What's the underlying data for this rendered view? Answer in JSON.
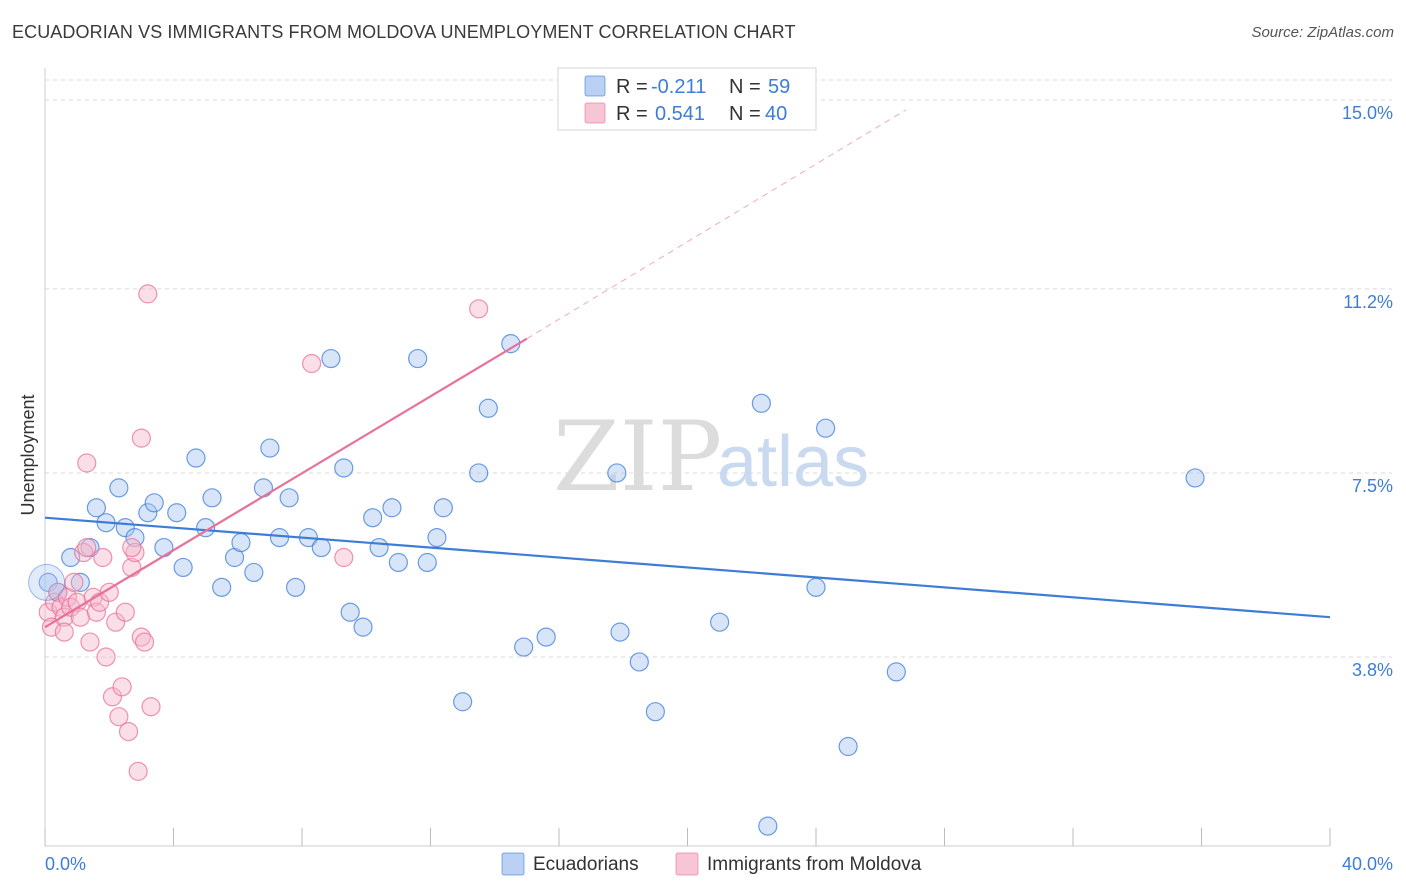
{
  "title": "ECUADORIAN VS IMMIGRANTS FROM MOLDOVA UNEMPLOYMENT CORRELATION CHART",
  "source": "Source: ZipAtlas.com",
  "watermark": {
    "zip": "ZIP",
    "atlas": "atlas"
  },
  "colors": {
    "blue": "#3d7dd8",
    "blue_fill": "#a9c6f0",
    "pink": "#e8709a",
    "pink_fill": "#f5b8cb",
    "grid": "#d9d9d9",
    "tick_text": "#3d7dd8"
  },
  "legend": {
    "r_label": "R =",
    "n_label": "N =",
    "rows": [
      {
        "series": "Ecuadorians",
        "r": "-0.211",
        "n": "59",
        "color": "blue"
      },
      {
        "series": "Immigrants from Moldova",
        "r": "0.541",
        "n": "40",
        "color": "pink"
      }
    ]
  },
  "bottom_legend": [
    "Ecuadorians",
    "Immigrants from Moldova"
  ],
  "chart_data": {
    "type": "scatter",
    "title": "ECUADORIAN VS IMMIGRANTS FROM MOLDOVA UNEMPLOYMENT CORRELATION CHART",
    "xlabel": "",
    "ylabel": "Unemployment",
    "xlim": [
      0,
      40
    ],
    "ylim": [
      0.0,
      15.4
    ],
    "x_tick_labels": [
      "0.0%",
      "40.0%"
    ],
    "y_ticks": [
      3.8,
      7.5,
      11.2,
      15.0
    ],
    "y_tick_labels": [
      "3.8%",
      "7.5%",
      "11.2%",
      "15.0%"
    ],
    "grid": true,
    "legend_position": "top-center",
    "series": [
      {
        "name": "Ecuadorians",
        "color": "blue",
        "r": -0.211,
        "n": 59,
        "trend": {
          "x": [
            0,
            40
          ],
          "y": [
            6.6,
            4.6
          ],
          "dashed_extension": false
        },
        "points": [
          [
            0.1,
            5.3
          ],
          [
            0.4,
            5.1
          ],
          [
            0.8,
            5.8
          ],
          [
            1.1,
            5.3
          ],
          [
            1.4,
            6.0
          ],
          [
            1.6,
            6.8
          ],
          [
            1.9,
            6.5
          ],
          [
            2.3,
            7.2
          ],
          [
            2.5,
            6.4
          ],
          [
            2.8,
            6.2
          ],
          [
            3.2,
            6.7
          ],
          [
            3.4,
            6.9
          ],
          [
            3.7,
            6.0
          ],
          [
            4.1,
            6.7
          ],
          [
            4.3,
            5.6
          ],
          [
            4.7,
            7.8
          ],
          [
            5.0,
            6.4
          ],
          [
            5.2,
            7.0
          ],
          [
            5.5,
            5.2
          ],
          [
            5.9,
            5.8
          ],
          [
            6.1,
            6.1
          ],
          [
            6.5,
            5.5
          ],
          [
            6.8,
            7.2
          ],
          [
            7.0,
            8.0
          ],
          [
            7.3,
            6.2
          ],
          [
            7.6,
            7.0
          ],
          [
            7.8,
            5.2
          ],
          [
            8.2,
            6.2
          ],
          [
            8.6,
            6.0
          ],
          [
            8.9,
            9.8
          ],
          [
            9.3,
            7.6
          ],
          [
            9.5,
            4.7
          ],
          [
            9.9,
            4.4
          ],
          [
            10.2,
            6.6
          ],
          [
            10.4,
            6.0
          ],
          [
            10.8,
            6.8
          ],
          [
            11.0,
            5.7
          ],
          [
            11.6,
            9.8
          ],
          [
            11.9,
            5.7
          ],
          [
            12.2,
            6.2
          ],
          [
            12.4,
            6.8
          ],
          [
            13.0,
            2.9
          ],
          [
            13.5,
            7.5
          ],
          [
            13.8,
            8.8
          ],
          [
            14.5,
            10.1
          ],
          [
            14.9,
            4.0
          ],
          [
            15.6,
            4.2
          ],
          [
            17.8,
            7.5
          ],
          [
            17.9,
            4.3
          ],
          [
            18.5,
            3.7
          ],
          [
            19.0,
            2.7
          ],
          [
            21.0,
            4.5
          ],
          [
            22.3,
            8.9
          ],
          [
            22.5,
            0.4
          ],
          [
            24.0,
            5.2
          ],
          [
            24.3,
            8.4
          ],
          [
            25.0,
            2.0
          ],
          [
            26.5,
            3.5
          ],
          [
            35.8,
            7.4
          ]
        ]
      },
      {
        "name": "Immigrants from Moldova",
        "color": "pink",
        "r": 0.541,
        "n": 40,
        "trend": {
          "x": [
            0,
            15.0
          ],
          "y": [
            4.4,
            10.2
          ],
          "dashed_extension": true,
          "dashed_to": [
            26.8,
            14.8
          ]
        },
        "points": [
          [
            0.1,
            4.7
          ],
          [
            0.2,
            4.4
          ],
          [
            0.3,
            4.9
          ],
          [
            0.4,
            5.1
          ],
          [
            0.5,
            4.8
          ],
          [
            0.6,
            4.6
          ],
          [
            0.7,
            5.0
          ],
          [
            0.8,
            4.8
          ],
          [
            0.9,
            5.3
          ],
          [
            1.0,
            4.9
          ],
          [
            1.1,
            4.6
          ],
          [
            1.2,
            5.9
          ],
          [
            1.3,
            6.0
          ],
          [
            1.4,
            4.1
          ],
          [
            1.5,
            5.0
          ],
          [
            1.6,
            4.7
          ],
          [
            1.7,
            4.9
          ],
          [
            1.8,
            5.8
          ],
          [
            1.9,
            3.8
          ],
          [
            2.0,
            5.1
          ],
          [
            2.1,
            3.0
          ],
          [
            2.2,
            4.5
          ],
          [
            2.3,
            2.6
          ],
          [
            2.4,
            3.2
          ],
          [
            2.5,
            4.7
          ],
          [
            2.6,
            2.3
          ],
          [
            2.7,
            5.6
          ],
          [
            2.8,
            5.9
          ],
          [
            2.9,
            1.5
          ],
          [
            3.0,
            8.2
          ],
          [
            1.3,
            7.7
          ],
          [
            2.7,
            6.0
          ],
          [
            3.0,
            4.2
          ],
          [
            3.1,
            4.1
          ],
          [
            3.3,
            2.8
          ],
          [
            3.2,
            11.1
          ],
          [
            8.3,
            9.7
          ],
          [
            9.3,
            5.8
          ],
          [
            13.5,
            10.8
          ],
          [
            0.6,
            4.3
          ]
        ]
      }
    ]
  }
}
